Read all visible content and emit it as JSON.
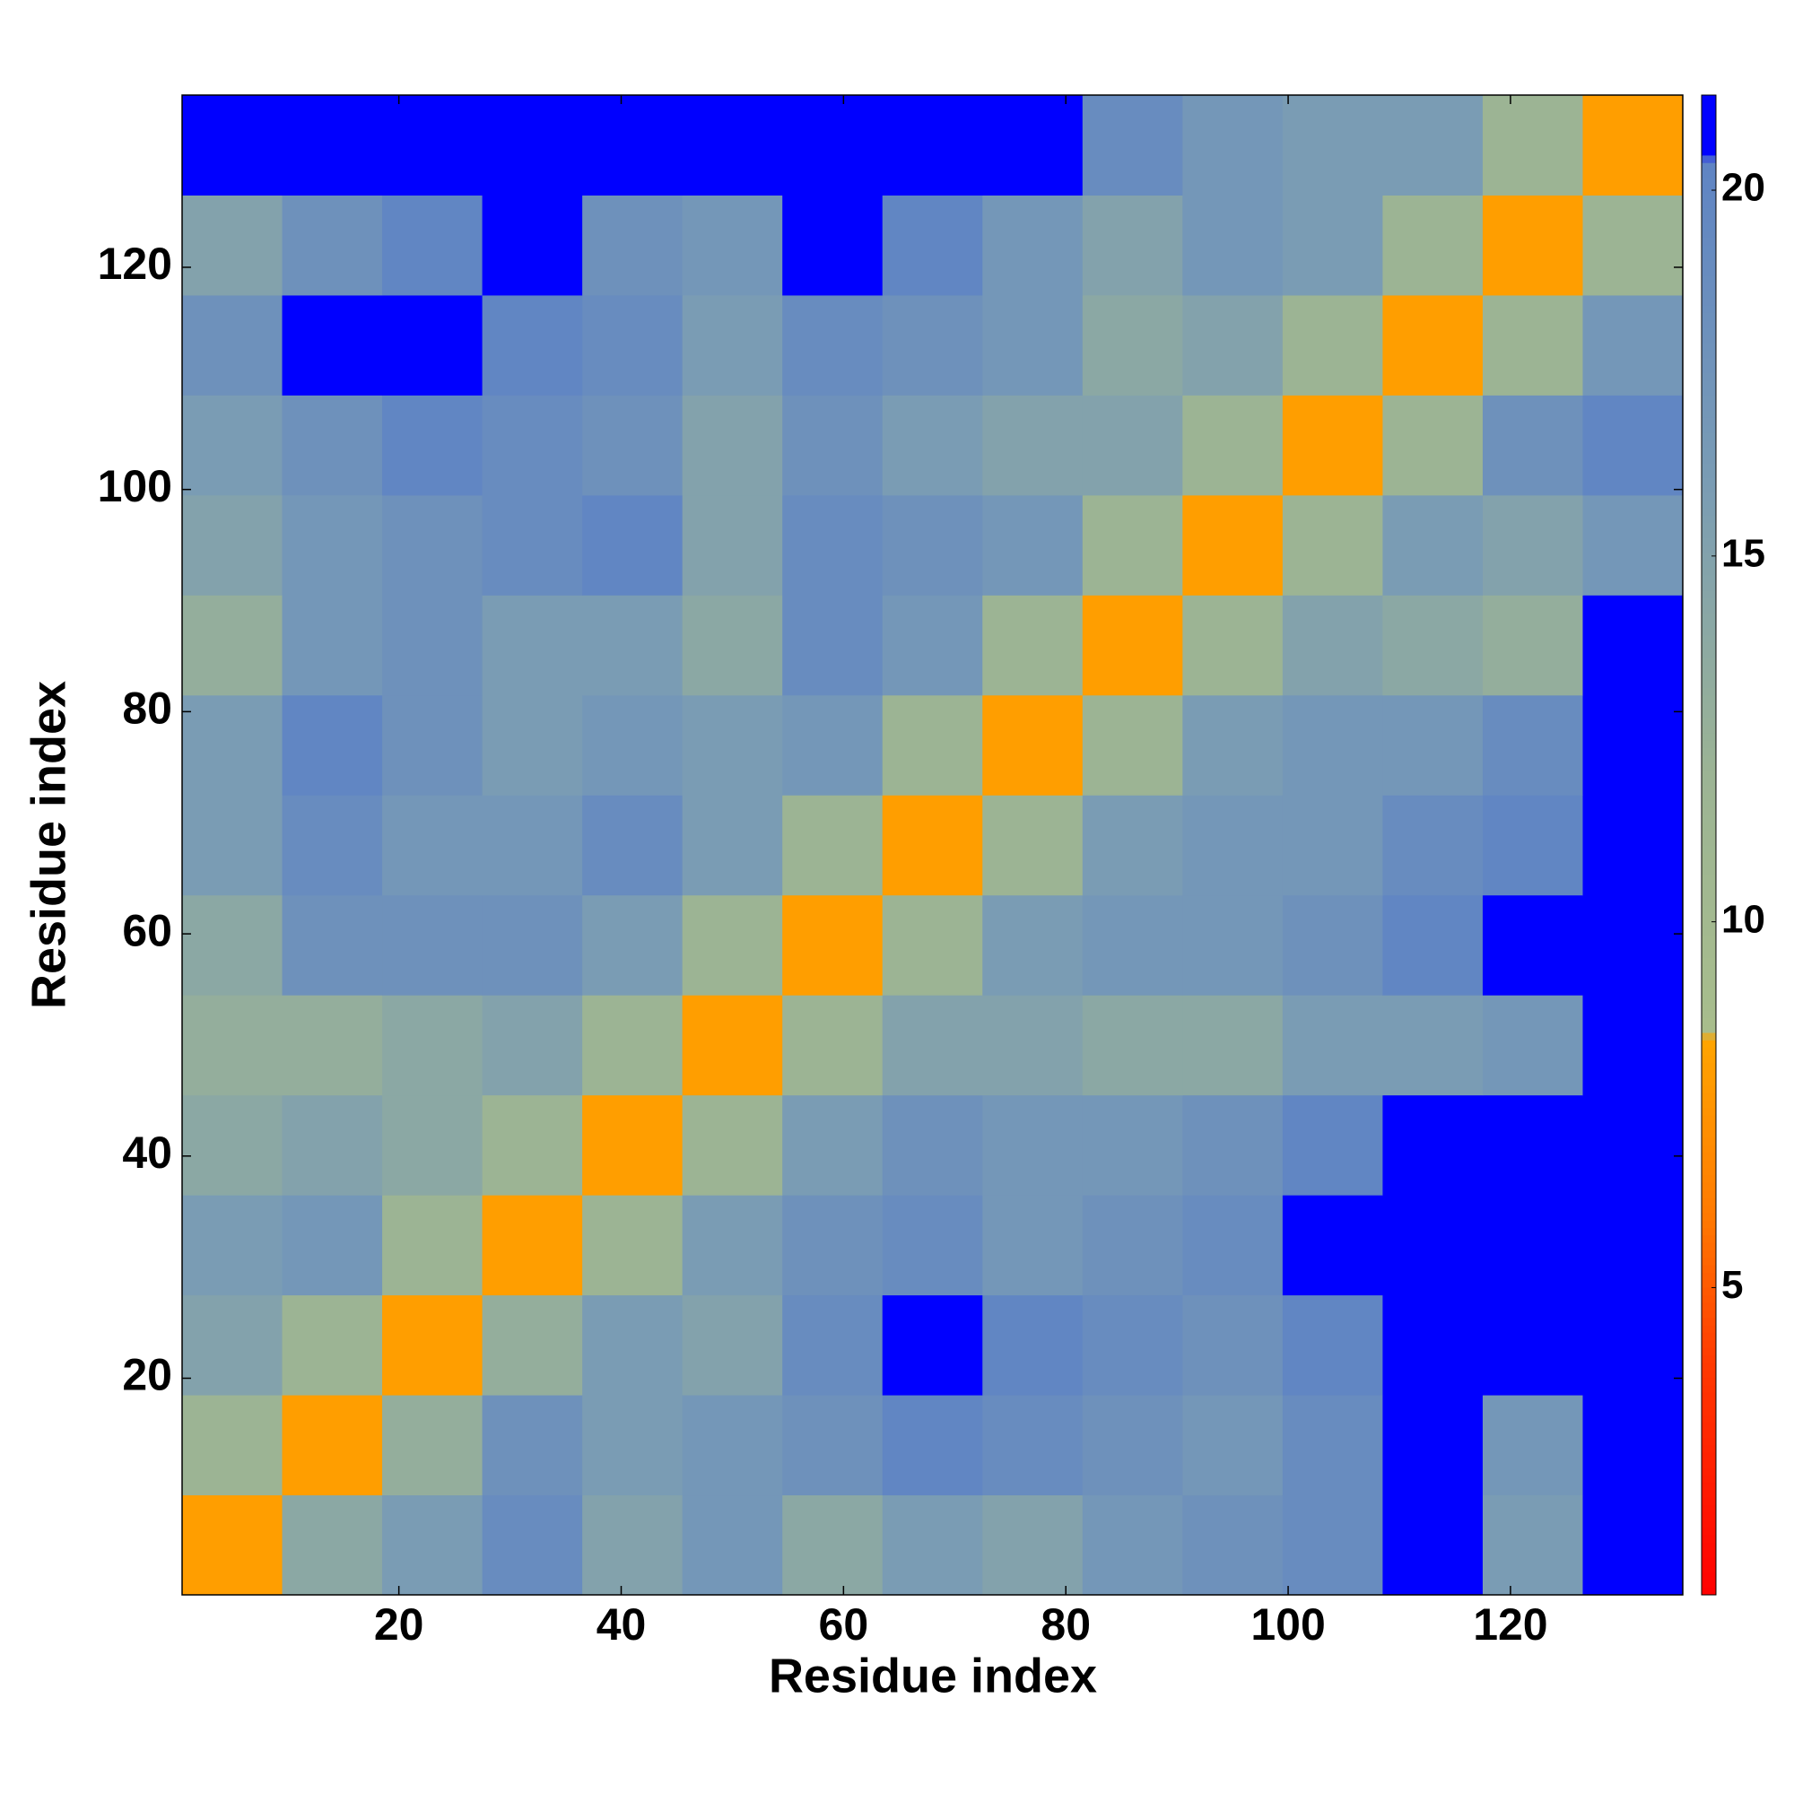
{
  "chart_data": {
    "type": "heatmap",
    "xlabel": "Residue index",
    "ylabel": "Residue index",
    "xbins": [
      0.5,
      9.5,
      18.5,
      27.5,
      36.5,
      45.5,
      54.5,
      63.5,
      72.5,
      81.5,
      90.5,
      99.5,
      108.5,
      117.5,
      126.5,
      135.5
    ],
    "ybins": [
      0.5,
      9.5,
      18.5,
      27.5,
      36.5,
      45.5,
      54.5,
      63.5,
      72.5,
      81.5,
      90.5,
      99.5,
      108.5,
      117.5,
      126.5,
      135.5
    ],
    "values": [
      [
        8,
        14,
        16,
        19,
        15,
        17,
        14,
        16,
        15,
        17,
        18,
        19,
        21,
        16,
        21
      ],
      [
        12,
        8,
        13,
        18,
        16,
        17,
        18,
        20,
        19,
        18,
        17,
        19,
        21,
        17,
        21
      ],
      [
        15,
        12,
        8,
        13,
        16,
        15,
        19,
        21,
        20,
        19,
        18,
        20,
        21,
        21,
        21
      ],
      [
        16,
        17,
        12,
        8,
        12,
        16,
        18,
        19,
        17,
        18,
        19,
        21,
        21,
        21,
        21
      ],
      [
        14,
        15,
        14,
        12,
        8,
        12,
        16,
        18,
        17,
        17,
        18,
        20,
        21,
        21,
        21
      ],
      [
        13,
        13,
        14,
        15,
        12,
        8,
        12,
        15,
        15,
        14,
        14,
        16,
        16,
        17,
        21
      ],
      [
        14,
        18,
        18,
        18,
        16,
        12,
        8,
        12,
        16,
        17,
        17,
        18,
        20,
        21,
        21
      ],
      [
        16,
        19,
        17,
        17,
        19,
        16,
        12,
        8,
        12,
        16,
        17,
        17,
        19,
        20,
        21
      ],
      [
        16,
        20,
        18,
        16,
        17,
        16,
        17,
        12,
        8,
        12,
        16,
        17,
        17,
        19,
        21
      ],
      [
        13,
        17,
        18,
        16,
        16,
        14,
        19,
        17,
        12,
        8,
        12,
        15,
        14,
        13,
        21
      ],
      [
        15,
        17,
        18,
        19,
        20,
        15,
        19,
        18,
        17,
        12,
        8,
        12,
        16,
        15,
        17
      ],
      [
        16,
        18,
        20,
        19,
        18,
        15,
        18,
        16,
        15,
        15,
        12,
        8,
        12,
        18,
        20
      ],
      [
        18,
        21,
        21,
        20,
        19,
        16,
        19,
        18,
        17,
        14,
        15,
        12,
        8,
        12,
        17
      ],
      [
        15,
        18,
        20,
        21,
        18,
        17,
        21,
        20,
        17,
        15,
        17,
        16,
        12,
        8,
        12
      ],
      [
        21,
        21,
        21,
        21,
        21,
        21,
        21,
        21,
        21,
        19,
        17,
        16,
        16,
        12,
        8
      ]
    ],
    "xlim": [
      0.5,
      135.5
    ],
    "ylim": [
      0.5,
      135.5
    ],
    "xticks": [
      20,
      40,
      60,
      80,
      100,
      120
    ],
    "yticks": [
      20,
      40,
      60,
      80,
      100,
      120
    ],
    "clim": [
      0.8,
      21.3
    ],
    "cticks": [
      5,
      10,
      15,
      20
    ],
    "colorscale": [
      [
        0.8,
        "#ff0000"
      ],
      [
        4,
        "#ff3a00"
      ],
      [
        6,
        "#ff7a00"
      ],
      [
        8.4,
        "#ffa500"
      ],
      [
        8.5,
        "#a8bd8c"
      ],
      [
        12,
        "#9cb494"
      ],
      [
        16,
        "#7a9cb4"
      ],
      [
        20.4,
        "#5f84c4"
      ],
      [
        20.5,
        "#0000ff"
      ],
      [
        21.3,
        "#0000ff"
      ]
    ]
  }
}
